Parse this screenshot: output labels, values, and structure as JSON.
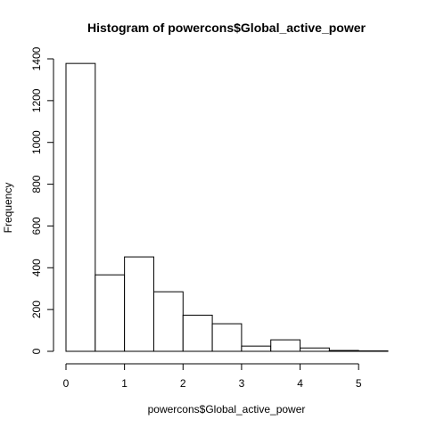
{
  "chart_data": {
    "type": "bar",
    "title": "Histogram of powercons$Global_active_power",
    "xlabel": "powercons$Global_active_power",
    "ylabel": "Frequency",
    "bin_edges": [
      0,
      0.5,
      1,
      1.5,
      2,
      2.5,
      3,
      3.5,
      4,
      4.5,
      5,
      5.5
    ],
    "values": [
      1378,
      366,
      452,
      285,
      173,
      132,
      25,
      55,
      16,
      4,
      2
    ],
    "x_ticks": [
      0,
      1,
      2,
      3,
      4,
      5
    ],
    "y_ticks": [
      0,
      200,
      400,
      600,
      800,
      1000,
      1200,
      1400
    ],
    "xlim": [
      0,
      5.5
    ],
    "ylim": [
      0,
      1400
    ],
    "grid": false,
    "colors": {
      "bar_fill": "#ffffff",
      "bar_stroke": "#000000",
      "axis": "#000000",
      "text": "#000000"
    }
  }
}
